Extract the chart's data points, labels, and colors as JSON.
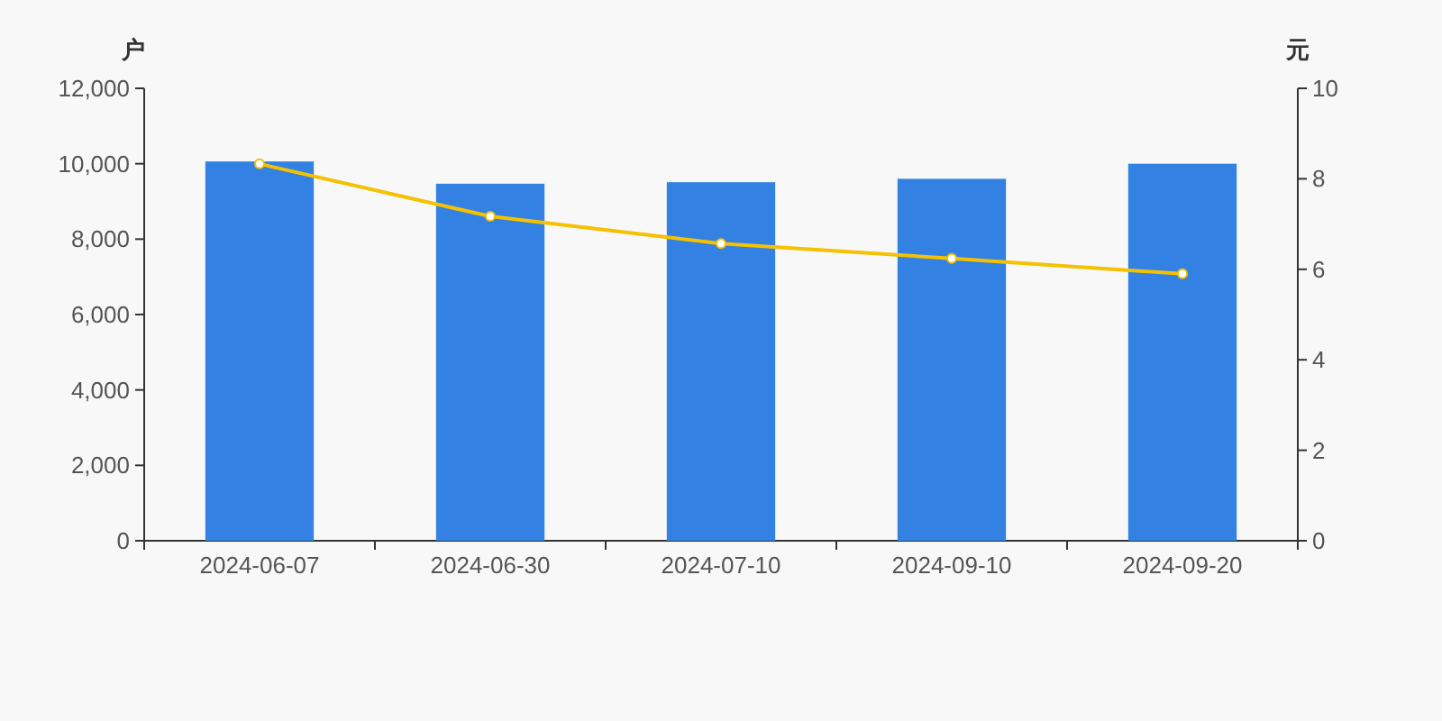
{
  "chart_data": {
    "type": "bar",
    "ylabel": "户",
    "y2label": "元",
    "categories": [
      "2024-06-07",
      "2024-06-30",
      "2024-07-10",
      "2024-09-10",
      "2024-09-20"
    ],
    "series": [
      {
        "color": "#3381e3",
        "values": [
          10060,
          9470,
          9510,
          9600,
          10000
        ]
      },
      {
        "type": "line",
        "axis": "y2",
        "color": "#f5c100",
        "marker": "circle",
        "values": [
          8.33,
          7.17,
          6.57,
          6.24,
          5.9
        ]
      }
    ],
    "ylim": [
      0,
      12000
    ],
    "yticks": [
      0,
      {
        "value": 2000,
        "label": "2,000"
      },
      {
        "value": 4000,
        "label": "4,000"
      },
      {
        "value": 6000,
        "label": "6,000"
      },
      {
        "value": 8000,
        "label": "8,000"
      },
      {
        "value": 10000,
        "label": "10,000"
      },
      {
        "value": 12000,
        "label": "12,000"
      }
    ],
    "y2lim": [
      0,
      10
    ],
    "y2ticks": [
      0,
      2,
      4,
      6,
      8,
      10
    ]
  }
}
